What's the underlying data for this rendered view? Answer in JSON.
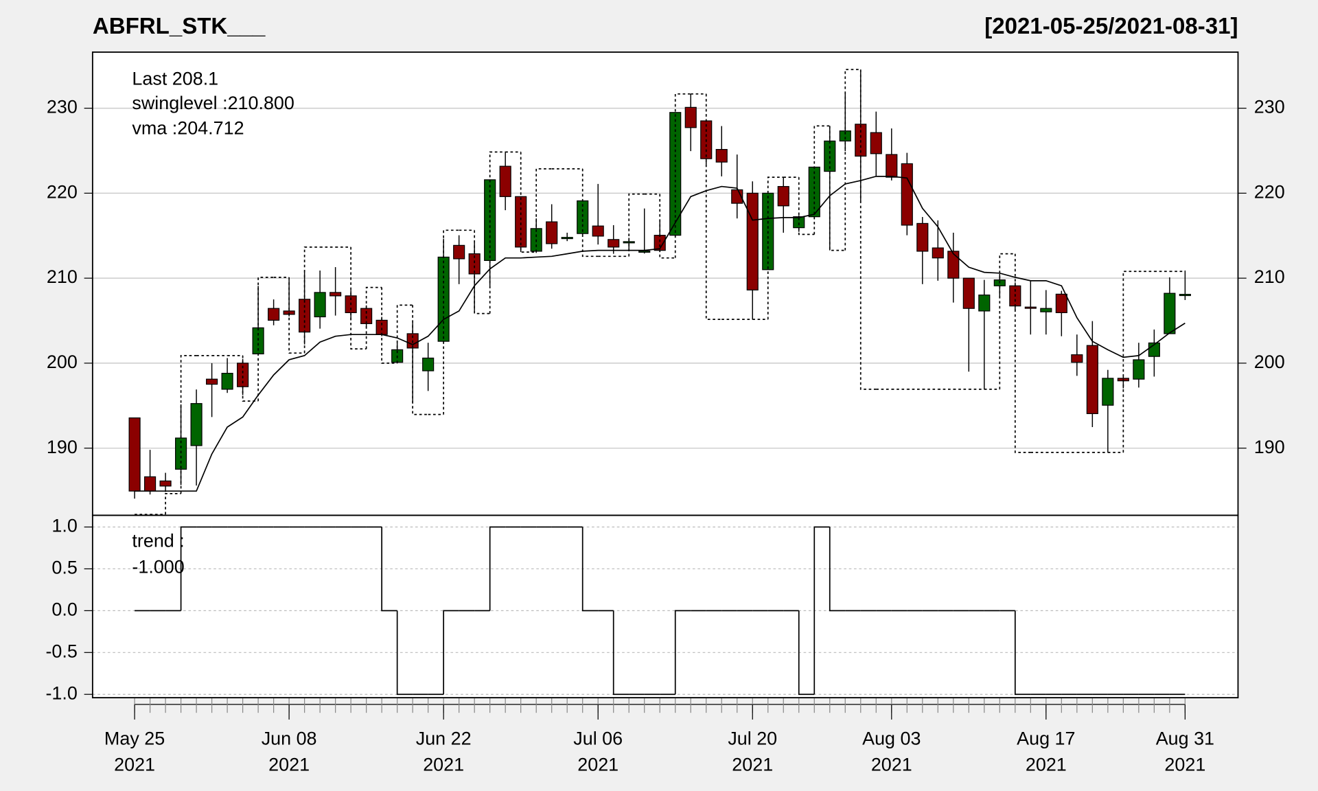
{
  "chart_data": {
    "type": "candlestick",
    "title": "ABFRL_STK___",
    "subtitle": "[2021-05-25/2021-08-31]",
    "x": [
      "2021-05-25",
      "2021-05-26",
      "2021-05-27",
      "2021-05-28",
      "2021-05-31",
      "2021-06-01",
      "2021-06-02",
      "2021-06-03",
      "2021-06-04",
      "2021-06-07",
      "2021-06-08",
      "2021-06-09",
      "2021-06-10",
      "2021-06-11",
      "2021-06-14",
      "2021-06-15",
      "2021-06-16",
      "2021-06-17",
      "2021-06-18",
      "2021-06-21",
      "2021-06-22",
      "2021-06-23",
      "2021-06-24",
      "2021-06-25",
      "2021-06-28",
      "2021-06-29",
      "2021-06-30",
      "2021-07-01",
      "2021-07-02",
      "2021-07-05",
      "2021-07-06",
      "2021-07-07",
      "2021-07-08",
      "2021-07-09",
      "2021-07-12",
      "2021-07-13",
      "2021-07-14",
      "2021-07-15",
      "2021-07-16",
      "2021-07-19",
      "2021-07-20",
      "2021-07-22",
      "2021-07-23",
      "2021-07-26",
      "2021-07-27",
      "2021-07-28",
      "2021-07-29",
      "2021-07-30",
      "2021-08-02",
      "2021-08-03",
      "2021-08-04",
      "2021-08-05",
      "2021-08-06",
      "2021-08-09",
      "2021-08-10",
      "2021-08-11",
      "2021-08-12",
      "2021-08-13",
      "2021-08-16",
      "2021-08-17",
      "2021-08-18",
      "2021-08-20",
      "2021-08-23",
      "2021-08-24",
      "2021-08-25",
      "2021-08-26",
      "2021-08-27",
      "2021-08-30",
      "2021-08-31"
    ],
    "open": [
      193.56,
      186.63,
      186.14,
      187.52,
      190.3,
      198.12,
      196.93,
      200.0,
      201.09,
      206.44,
      206.14,
      207.52,
      205.45,
      208.32,
      207.92,
      206.44,
      205.05,
      200.1,
      203.47,
      199.1,
      202.57,
      213.86,
      212.87,
      212.08,
      223.17,
      219.6,
      213.17,
      216.63,
      214.7,
      215.25,
      216.14,
      214.55,
      214.2,
      213.1,
      215.05,
      215.05,
      230.1,
      228.51,
      225.15,
      220.4,
      220.0,
      211.0,
      220.79,
      215.94,
      217.23,
      222.57,
      226.14,
      228.12,
      227.13,
      224.55,
      223.47,
      216.44,
      213.56,
      213.17,
      210.0,
      206.14,
      209.1,
      209.1,
      206.6,
      206.04,
      208.12,
      200.99,
      202.08,
      195.05,
      198.22,
      198.12,
      200.79,
      203.47,
      208.1
    ],
    "high": [
      193.56,
      189.8,
      187.1,
      195.15,
      196.9,
      200.0,
      200.6,
      200.5,
      209.1,
      207.5,
      209.8,
      210.8,
      210.9,
      211.3,
      208.6,
      206.8,
      205.45,
      202.4,
      204.75,
      202.4,
      214.65,
      215.05,
      214.16,
      221.58,
      224.85,
      219.6,
      217.03,
      218.7,
      215.35,
      219.1,
      221.09,
      216.24,
      214.75,
      218.2,
      216.83,
      229.5,
      231.68,
      228.51,
      227.9,
      224.55,
      221.39,
      220.0,
      221.88,
      217.4,
      223.07,
      227.7,
      231.88,
      234.46,
      229.6,
      227.62,
      224.75,
      217.2,
      216.8,
      215.35,
      210.0,
      209.8,
      210.5,
      209.5,
      209.7,
      208.6,
      208.51,
      203.37,
      204.95,
      199.21,
      198.5,
      202.4,
      203.96,
      210.1,
      210.9
    ],
    "low": [
      184.06,
      184.55,
      184.85,
      185.64,
      185.6,
      193.66,
      196.5,
      196.24,
      201.09,
      204.46,
      205.5,
      202.2,
      204.06,
      205.6,
      205.05,
      204.16,
      203.17,
      200.0,
      195.25,
      196.73,
      202.57,
      209.3,
      206.14,
      209.1,
      218.0,
      213.07,
      212.97,
      213.47,
      214.36,
      215.05,
      213.96,
      212.87,
      213.27,
      212.9,
      213.27,
      215.05,
      224.95,
      223.37,
      221.98,
      217.03,
      205.15,
      211.0,
      215.35,
      215.45,
      217.23,
      213.27,
      224.95,
      219.0,
      221.98,
      221.5,
      215.05,
      209.3,
      209.7,
      207.13,
      199.0,
      196.93,
      207.9,
      206.14,
      203.37,
      203.37,
      203.17,
      198.51,
      192.48,
      189.5,
      197.03,
      197.13,
      198.42,
      203.47,
      207.43
    ],
    "close": [
      184.95,
      184.95,
      185.54,
      191.19,
      195.25,
      197.52,
      198.81,
      197.23,
      204.16,
      205.05,
      205.74,
      203.66,
      208.32,
      207.92,
      205.94,
      204.65,
      203.37,
      201.58,
      201.78,
      200.6,
      212.48,
      212.28,
      210.5,
      221.58,
      219.6,
      213.66,
      215.84,
      214.06,
      214.8,
      219.1,
      214.95,
      213.66,
      214.3,
      213.2,
      213.27,
      229.5,
      227.72,
      224.06,
      223.66,
      218.81,
      208.61,
      220.0,
      218.51,
      217.23,
      223.07,
      226.14,
      227.33,
      224.36,
      224.65,
      221.88,
      216.24,
      213.17,
      212.38,
      210.0,
      206.44,
      208.02,
      209.8,
      206.73,
      206.5,
      206.44,
      205.94,
      200.1,
      194.06,
      198.22,
      197.92,
      200.4,
      202.38,
      208.22,
      208.1
    ],
    "up_color": "#006400",
    "down_color": "#8b0000",
    "ylim": [
      182.1,
      236.6
    ],
    "yticks": [
      190,
      200,
      210,
      220,
      230
    ],
    "grid": true,
    "xticks": [
      {
        "value": "2021-05-25",
        "label": [
          "May 25",
          "2021"
        ]
      },
      {
        "value": "2021-06-08",
        "label": [
          "Jun 08",
          "2021"
        ]
      },
      {
        "value": "2021-06-22",
        "label": [
          "Jun 22",
          "2021"
        ]
      },
      {
        "value": "2021-07-06",
        "label": [
          "Jul 06",
          "2021"
        ]
      },
      {
        "value": "2021-07-20",
        "label": [
          "Jul 20",
          "2021"
        ]
      },
      {
        "value": "2021-08-03",
        "label": [
          "Aug 03",
          "2021"
        ]
      },
      {
        "value": "2021-08-17",
        "label": [
          "Aug 17",
          "2021"
        ]
      },
      {
        "value": "2021-08-31",
        "label": [
          "Aug 31",
          "2021"
        ]
      }
    ],
    "last_label": "Last 208.1",
    "last_color": "#8b0000",
    "series": [
      {
        "label": "swinglevel :210.800",
        "color": "#000000",
        "style": "dotted",
        "step": true,
        "values": [
          182.2,
          182.2,
          184.65,
          200.89,
          200.89,
          200.89,
          200.89,
          195.54,
          210.1,
          210.1,
          201.19,
          213.66,
          213.66,
          213.66,
          201.68,
          208.91,
          200.0,
          206.83,
          193.96,
          193.96,
          215.64,
          215.64,
          205.84,
          224.85,
          224.85,
          213.07,
          222.87,
          222.87,
          222.87,
          212.57,
          212.57,
          212.57,
          219.9,
          219.9,
          212.38,
          231.68,
          231.68,
          205.15,
          205.15,
          205.15,
          205.15,
          221.88,
          221.88,
          215.15,
          227.92,
          213.27,
          234.55,
          196.93,
          196.93,
          196.93,
          196.93,
          196.93,
          196.93,
          196.93,
          196.93,
          196.93,
          212.87,
          189.5,
          189.5,
          189.5,
          189.5,
          189.5,
          189.5,
          189.5,
          210.8,
          210.8,
          210.8,
          210.8,
          210.8
        ]
      },
      {
        "label": "vma :204.712",
        "color": "#000000",
        "style": "solid",
        "step": false,
        "values": [
          184.95,
          184.95,
          184.95,
          184.95,
          184.95,
          189.31,
          192.48,
          193.66,
          196.24,
          198.61,
          200.4,
          200.89,
          202.48,
          203.17,
          203.37,
          203.37,
          203.37,
          202.97,
          202.18,
          203.17,
          205.15,
          206.14,
          209.11,
          211.09,
          212.38,
          212.38,
          212.48,
          212.57,
          212.87,
          213.17,
          213.27,
          213.27,
          213.27,
          213.27,
          213.47,
          216.53,
          219.6,
          220.3,
          220.79,
          220.59,
          216.83,
          217.03,
          217.13,
          217.13,
          217.52,
          219.7,
          221.09,
          221.49,
          221.98,
          221.98,
          221.78,
          218.22,
          216.04,
          212.87,
          211.29,
          210.69,
          210.59,
          210.1,
          209.7,
          209.7,
          209.11,
          205.35,
          202.57,
          201.58,
          200.69,
          200.89,
          202.18,
          203.56,
          204.71
        ]
      }
    ],
    "lower": {
      "type": "line",
      "step": true,
      "color": "#000000",
      "label": [
        "trend :",
        "-1.000"
      ],
      "values": [
        0,
        0,
        0,
        1,
        1,
        1,
        1,
        1,
        1,
        1,
        1,
        1,
        1,
        1,
        1,
        1,
        0,
        -1,
        -1,
        -1,
        0,
        0,
        0,
        1,
        1,
        1,
        1,
        1,
        1,
        0,
        0,
        -1,
        -1,
        -1,
        -1,
        0,
        0,
        0,
        0,
        0,
        0,
        0,
        0,
        -1,
        1,
        0,
        0,
        0,
        0,
        0,
        0,
        0,
        0,
        0,
        0,
        0,
        0,
        -1,
        -1,
        -1,
        -1,
        -1,
        -1,
        -1,
        -1,
        -1,
        -1,
        -1,
        -1
      ],
      "ylim": [
        -1.04,
        1.14
      ],
      "yticks": [
        {
          "value": 1,
          "label": "1.0"
        },
        {
          "value": 0.5,
          "label": "0.5"
        },
        {
          "value": 0,
          "label": "0.0"
        },
        {
          "value": -0.5,
          "label": "-0.5"
        },
        {
          "value": -1,
          "label": "-1.0"
        }
      ],
      "grid": true
    }
  }
}
